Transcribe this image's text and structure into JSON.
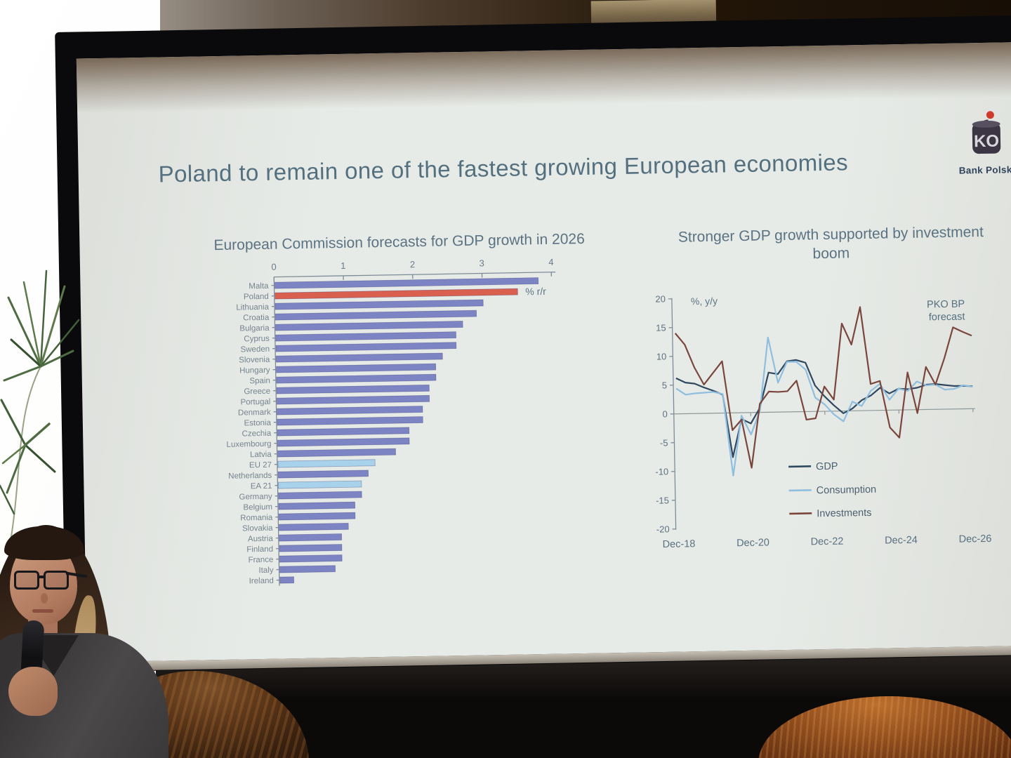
{
  "slide": {
    "title": "Poland to remain one of the fastest growing European economies",
    "logo": {
      "letters": "KO",
      "caption": "Bank Polski",
      "dot_color": "#d03a2b",
      "body_color": "#3c3644"
    },
    "text_color": "#54707f"
  },
  "chart_data": [
    {
      "type": "bar",
      "orientation": "horizontal",
      "title": "European Commission forecasts for GDP growth in 2026",
      "unit_label": "% r/r",
      "xlim": [
        0,
        4
      ],
      "xticks": [
        0,
        1,
        2,
        3,
        4
      ],
      "grid": false,
      "categories": [
        "Malta",
        "Poland",
        "Lithuania",
        "Croatia",
        "Bulgaria",
        "Cyprus",
        "Sweden",
        "Slovenia",
        "Hungary",
        "Spain",
        "Greece",
        "Portugal",
        "Denmark",
        "Estonia",
        "Czechia",
        "Luxembourg",
        "Latvia",
        "EU 27",
        "Netherlands",
        "EA 21",
        "Germany",
        "Belgium",
        "Romania",
        "Slovakia",
        "Austria",
        "Finland",
        "France",
        "Italy",
        "Ireland"
      ],
      "values": [
        3.8,
        3.5,
        3.0,
        2.9,
        2.7,
        2.6,
        2.6,
        2.4,
        2.3,
        2.3,
        2.2,
        2.2,
        2.1,
        2.1,
        1.9,
        1.9,
        1.7,
        1.4,
        1.3,
        1.2,
        1.2,
        1.1,
        1.1,
        1.0,
        0.9,
        0.9,
        0.9,
        0.8,
        0.2
      ],
      "colors": {
        "default": "#7d84c4",
        "Poland": "#d9604f",
        "EU 27": "#a8d2ec",
        "EA 21": "#a8d2ec"
      }
    },
    {
      "type": "line",
      "title": "Stronger GDP growth supported by investment boom",
      "ylabel": "%, y/y",
      "annotation": [
        "PKO BP",
        "forecast"
      ],
      "ylim": [
        -20,
        20
      ],
      "yticks": [
        20,
        15,
        10,
        5,
        0,
        -5,
        -10,
        -15,
        -20
      ],
      "x_tick_labels": [
        "Dec-18",
        "Dec-20",
        "Dec-22",
        "Dec-24",
        "Dec-26"
      ],
      "x_frequency": "quarterly",
      "legend_position": "inside-bottom-left",
      "series": [
        {
          "name": "GDP",
          "color": "#2f4860",
          "values": [
            6.2,
            5.4,
            5.2,
            4.5,
            3.9,
            3.2,
            -7.7,
            -1.1,
            -1.9,
            0.8,
            6.9,
            6.6,
            8.8,
            9.0,
            8.5,
            4.5,
            2.6,
            1.0,
            -0.4,
            0.4,
            1.8,
            2.6,
            3.9,
            2.9,
            3.7,
            3.6,
            3.8,
            4.3,
            4.4,
            4.2,
            4.0,
            4.0,
            3.9
          ]
        },
        {
          "name": "Consumption",
          "color": "#8fbede",
          "values": [
            4.4,
            3.3,
            3.5,
            3.6,
            3.7,
            3.3,
            -10.9,
            -0.5,
            -3.8,
            0.3,
            13.0,
            5.1,
            8.7,
            8.7,
            7.3,
            2.4,
            1.2,
            -0.6,
            -1.8,
            1.6,
            0.8,
            3.4,
            4.6,
            1.8,
            3.7,
            3.3,
            4.9,
            4.2,
            4.3,
            3.4,
            3.5,
            4.1,
            3.8
          ]
        },
        {
          "name": "Investments",
          "color": "#7a463c",
          "values": [
            14,
            12,
            8,
            5,
            7,
            9,
            -3,
            -1.2,
            -9.6,
            1.5,
            3.6,
            3.5,
            3.6,
            5.4,
            -1.4,
            -1.2,
            4.3,
            2,
            15.2,
            11.5,
            18,
            4.6,
            5.1,
            -3,
            -4.8,
            6.5,
            -0.6,
            7.4,
            4.3,
            8.8,
            14.2,
            13.4,
            12.7
          ]
        }
      ]
    }
  ]
}
